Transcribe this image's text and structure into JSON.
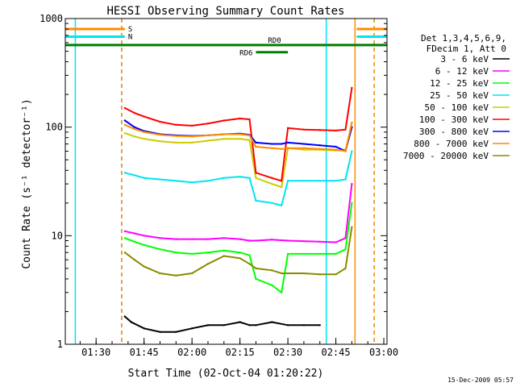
{
  "chart_data": {
    "type": "line",
    "title": "HESSI Observing Summary Count Rates",
    "xlabel": "Start Time (02-Oct-04 01:20:22)",
    "ylabel": "Count Rate (s⁻¹ detector⁻¹)",
    "yscale": "log",
    "ylim": [
      1,
      1000
    ],
    "xlim": [
      "01:20:22",
      "03:01:00"
    ],
    "x_ticks": [
      "01:30",
      "01:45",
      "02:00",
      "02:15",
      "02:30",
      "02:45",
      "03:00"
    ],
    "y_ticks": [
      "1",
      "10",
      "100",
      "1000"
    ],
    "grid": false,
    "legend_header": [
      "Det 1,3,4,5,6,9,",
      "FDecim 1, Att 0"
    ],
    "legend_position": "right",
    "flags": [
      {
        "label": "S",
        "color": "#ff8c00",
        "level": 800
      },
      {
        "label": "N",
        "color": "#00e5ee",
        "level": 680
      },
      {
        "label": "RD0",
        "color": "#008000",
        "level": 570
      },
      {
        "label": "RD6",
        "color": "#008000",
        "level": 490
      }
    ],
    "vertical_markers": [
      {
        "time": "01:23:30",
        "color": "#00e5ee",
        "style": "solid"
      },
      {
        "time": "01:38:00",
        "color": "#00e5ee",
        "style": "dashed"
      },
      {
        "time": "01:38:00",
        "color": "#ff8c00",
        "style": "dashed"
      },
      {
        "time": "02:42:00",
        "color": "#00e5ee",
        "style": "solid"
      },
      {
        "time": "02:51:00",
        "color": "#ff8c00",
        "style": "solid"
      },
      {
        "time": "02:57:00",
        "color": "#00e5ee",
        "style": "dashed"
      },
      {
        "time": "02:57:00",
        "color": "#ff8c00",
        "style": "dashed"
      }
    ],
    "series": [
      {
        "name": "3 - 6 keV",
        "color": "#000000",
        "x": [
          "01:39",
          "01:41",
          "01:45",
          "01:50",
          "01:55",
          "02:00",
          "02:05",
          "02:10",
          "02:15",
          "02:18",
          "02:20",
          "02:25",
          "02:30",
          "02:35",
          "02:40"
        ],
        "y": [
          1.8,
          1.6,
          1.4,
          1.3,
          1.3,
          1.4,
          1.5,
          1.5,
          1.6,
          1.5,
          1.5,
          1.6,
          1.5,
          1.5,
          1.5
        ]
      },
      {
        "name": "6 - 12 keV",
        "color": "#ff00ff",
        "x": [
          "01:39",
          "01:42",
          "01:45",
          "01:50",
          "01:55",
          "02:00",
          "02:05",
          "02:10",
          "02:15",
          "02:18",
          "02:20",
          "02:25",
          "02:30",
          "02:35",
          "02:40",
          "02:45",
          "02:48",
          "02:50"
        ],
        "y": [
          11,
          10.5,
          10,
          9.5,
          9.3,
          9.3,
          9.3,
          9.5,
          9.3,
          9.0,
          9.0,
          9.2,
          9.0,
          8.9,
          8.8,
          8.7,
          9.5,
          30
        ]
      },
      {
        "name": "12 - 25 keV",
        "color": "#00ff00",
        "x": [
          "01:39",
          "01:42",
          "01:45",
          "01:50",
          "01:55",
          "02:00",
          "02:05",
          "02:10",
          "02:15",
          "02:18",
          "02:20",
          "02:25",
          "02:28",
          "02:30",
          "02:35",
          "02:40",
          "02:45",
          "02:48",
          "02:50"
        ],
        "y": [
          9.5,
          8.8,
          8.2,
          7.5,
          7.0,
          6.8,
          7.0,
          7.3,
          7.0,
          6.6,
          4.0,
          3.5,
          3.0,
          6.8,
          6.8,
          6.8,
          6.8,
          7.5,
          20
        ]
      },
      {
        "name": "25 - 50 keV",
        "color": "#00e5ee",
        "x": [
          "01:39",
          "01:42",
          "01:45",
          "01:50",
          "01:55",
          "02:00",
          "02:05",
          "02:10",
          "02:15",
          "02:18",
          "02:20",
          "02:25",
          "02:28",
          "02:30",
          "02:35",
          "02:40",
          "02:45",
          "02:48",
          "02:50"
        ],
        "y": [
          38,
          36,
          34,
          33,
          32,
          31,
          32,
          34,
          35,
          34,
          21,
          20,
          19,
          32,
          32,
          32,
          32,
          33,
          60
        ]
      },
      {
        "name": "50 - 100 keV",
        "color": "#cccc00",
        "x": [
          "01:39",
          "01:42",
          "01:45",
          "01:50",
          "01:55",
          "02:00",
          "02:05",
          "02:10",
          "02:15",
          "02:18",
          "02:20",
          "02:25",
          "02:28",
          "02:30",
          "02:35",
          "02:40",
          "02:45",
          "02:48",
          "02:50"
        ],
        "y": [
          88,
          82,
          78,
          74,
          72,
          72,
          75,
          78,
          78,
          76,
          34,
          30,
          28,
          64,
          62,
          62,
          61,
          62,
          100
        ]
      },
      {
        "name": "100 - 300 keV",
        "color": "#ff0000",
        "x": [
          "01:39",
          "01:42",
          "01:45",
          "01:50",
          "01:55",
          "02:00",
          "02:05",
          "02:10",
          "02:15",
          "02:18",
          "02:20",
          "02:25",
          "02:28",
          "02:30",
          "02:35",
          "02:40",
          "02:45",
          "02:48",
          "02:50"
        ],
        "y": [
          150,
          135,
          125,
          112,
          105,
          103,
          108,
          115,
          120,
          118,
          38,
          34,
          32,
          98,
          95,
          94,
          93,
          95,
          230
        ]
      },
      {
        "name": "300 - 800 keV",
        "color": "#0000ff",
        "x": [
          "01:39",
          "01:42",
          "01:45",
          "01:50",
          "01:55",
          "02:00",
          "02:05",
          "02:10",
          "02:15",
          "02:18",
          "02:20",
          "02:25",
          "02:28",
          "02:30",
          "02:35",
          "02:40",
          "02:45",
          "02:48",
          "02:50"
        ],
        "y": [
          115,
          100,
          92,
          86,
          84,
          83,
          84,
          86,
          87,
          85,
          72,
          70,
          70,
          72,
          70,
          68,
          66,
          60,
          100
        ]
      },
      {
        "name": "800 - 7000 keV",
        "color": "#ff8c00",
        "x": [
          "01:39",
          "01:42",
          "01:45",
          "01:50",
          "01:55",
          "02:00",
          "02:05",
          "02:10",
          "02:15",
          "02:18",
          "02:20",
          "02:25",
          "02:28",
          "02:30",
          "02:35",
          "02:40",
          "02:45",
          "02:48",
          "02:50"
        ],
        "y": [
          105,
          96,
          90,
          85,
          83,
          82,
          84,
          86,
          86,
          84,
          66,
          64,
          63,
          64,
          64,
          63,
          62,
          60,
          110
        ]
      },
      {
        "name": "7000 - 20000 keV",
        "color": "#8b8b00",
        "x": [
          "01:39",
          "01:42",
          "01:45",
          "01:50",
          "01:55",
          "02:00",
          "02:05",
          "02:10",
          "02:15",
          "02:18",
          "02:20",
          "02:25",
          "02:28",
          "02:30",
          "02:35",
          "02:40",
          "02:45",
          "02:48",
          "02:50"
        ],
        "y": [
          7.0,
          6.0,
          5.2,
          4.5,
          4.3,
          4.5,
          5.5,
          6.5,
          6.2,
          5.5,
          5.0,
          4.8,
          4.5,
          4.5,
          4.5,
          4.4,
          4.4,
          5.0,
          12
        ]
      }
    ]
  },
  "footer_timestamp": "15-Dec-2009 05:57"
}
